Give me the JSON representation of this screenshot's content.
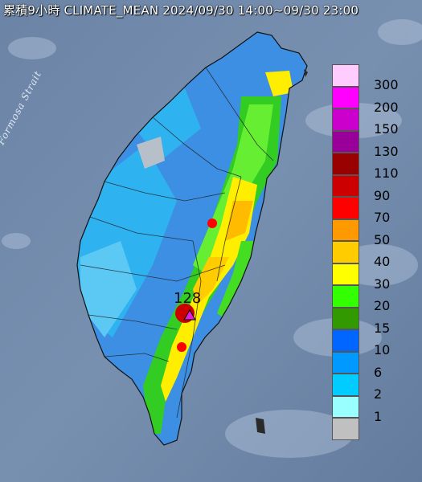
{
  "title": "累積9小時 CLIMATE_MEAN 2024/09/30 14:00~09/30 23:00",
  "strait_label": "Formosa Strait",
  "peak": {
    "value": "128",
    "marker": "triangle-icon"
  },
  "legend": {
    "items": [
      {
        "label": "300",
        "color": "#ffccff"
      },
      {
        "label": "200",
        "color": "#ff00ff"
      },
      {
        "label": "150",
        "color": "#cc00cc"
      },
      {
        "label": "130",
        "color": "#990099"
      },
      {
        "label": "110",
        "color": "#990000"
      },
      {
        "label": "90",
        "color": "#cc0000"
      },
      {
        "label": "70",
        "color": "#ff0000"
      },
      {
        "label": "50",
        "color": "#ff9900"
      },
      {
        "label": "40",
        "color": "#ffcc00"
      },
      {
        "label": "30",
        "color": "#ffff00"
      },
      {
        "label": "20",
        "color": "#33ff00"
      },
      {
        "label": "15",
        "color": "#339900"
      },
      {
        "label": "10",
        "color": "#0066ff"
      },
      {
        "label": "6",
        "color": "#0099ff"
      },
      {
        "label": "2",
        "color": "#00ccff"
      },
      {
        "label": "1",
        "color": "#99ffff"
      },
      {
        "label": "",
        "color": "#c0c0c0"
      }
    ]
  },
  "colors": {
    "sea": "#6f86a6",
    "land_low": "#3d8fe3",
    "land_mid": "#2fb2f0"
  }
}
